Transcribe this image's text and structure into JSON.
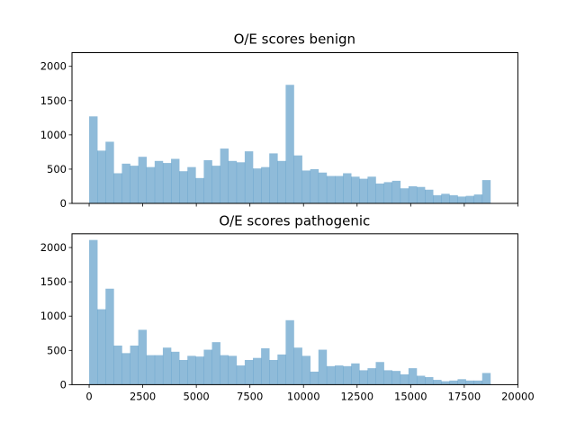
{
  "chart_data": [
    {
      "type": "bar",
      "title": "O/E scores benign",
      "xlabel": "",
      "ylabel": "",
      "xlim": [
        -800,
        20000
      ],
      "ylim": [
        0,
        2200
      ],
      "grid": false,
      "color": "#1f77b4",
      "alpha": 0.5,
      "x_ticks": [
        0,
        2500,
        5000,
        7500,
        10000,
        12500,
        15000,
        17500,
        20000
      ],
      "x_tick_labels_visible": false,
      "y_ticks": [
        0,
        500,
        1000,
        1500,
        2000
      ],
      "y_tick_labels": [
        "0",
        "500",
        "1000",
        "1500",
        "2000"
      ],
      "bin_start": 0,
      "bin_width": 382,
      "values": [
        1270,
        770,
        900,
        440,
        580,
        550,
        680,
        530,
        620,
        590,
        650,
        470,
        530,
        370,
        630,
        550,
        800,
        620,
        600,
        760,
        510,
        530,
        730,
        620,
        1730,
        700,
        480,
        500,
        450,
        400,
        400,
        440,
        390,
        360,
        390,
        290,
        310,
        330,
        220,
        250,
        240,
        200,
        120,
        140,
        120,
        100,
        110,
        130,
        340
      ]
    },
    {
      "type": "bar",
      "title": "O/E scores pathogenic",
      "xlabel": "",
      "ylabel": "",
      "xlim": [
        -800,
        20000
      ],
      "ylim": [
        0,
        2200
      ],
      "grid": false,
      "color": "#1f77b4",
      "alpha": 0.5,
      "x_ticks": [
        0,
        2500,
        5000,
        7500,
        10000,
        12500,
        15000,
        17500,
        20000
      ],
      "x_tick_labels": [
        "0",
        "2500",
        "5000",
        "7500",
        "10000",
        "12500",
        "15000",
        "17500",
        "20000"
      ],
      "y_ticks": [
        0,
        500,
        1000,
        1500,
        2000
      ],
      "y_tick_labels": [
        "0",
        "500",
        "1000",
        "1500",
        "2000"
      ],
      "bin_start": 0,
      "bin_width": 382,
      "values": [
        2110,
        1100,
        1400,
        570,
        460,
        570,
        800,
        430,
        430,
        540,
        480,
        360,
        420,
        410,
        510,
        620,
        430,
        420,
        280,
        360,
        390,
        530,
        360,
        440,
        940,
        540,
        420,
        190,
        510,
        270,
        280,
        270,
        310,
        210,
        240,
        330,
        210,
        200,
        150,
        240,
        130,
        110,
        70,
        50,
        60,
        80,
        60,
        60,
        170
      ]
    }
  ]
}
